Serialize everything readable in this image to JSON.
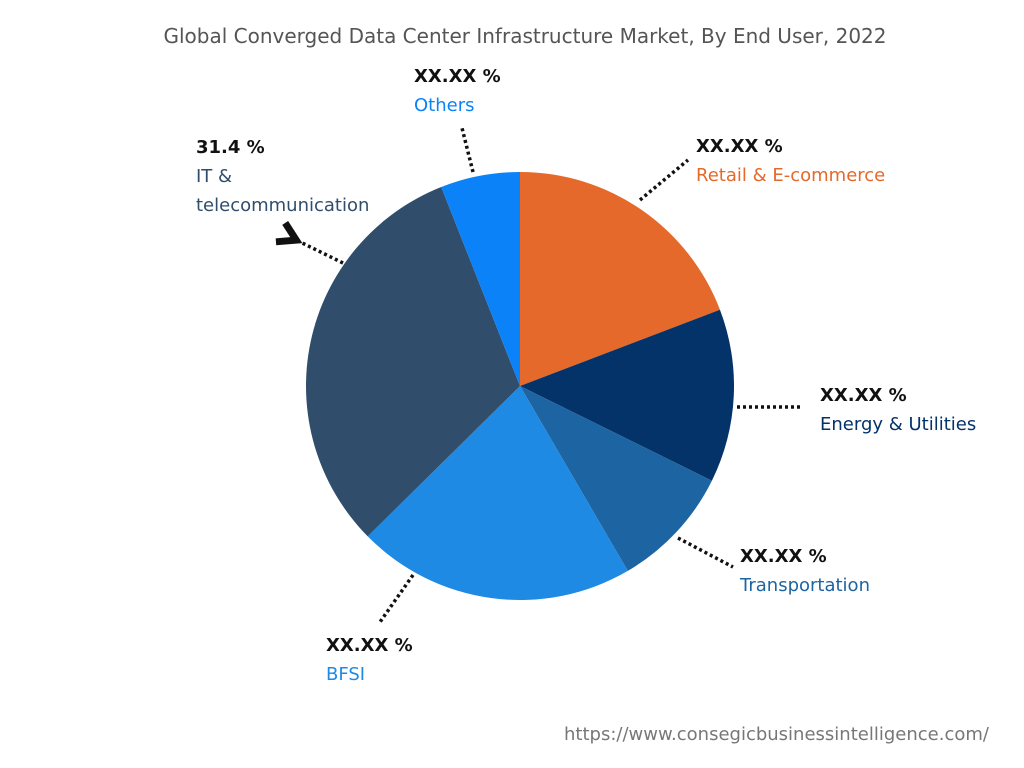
{
  "chart_data": {
    "type": "pie",
    "title": "Global Converged Data Center Infrastructure Market, By End User, 2022",
    "slices": [
      {
        "name": "Retail & E-commerce",
        "value": 19.2,
        "label": "XX.XX %",
        "color": "#E4692A"
      },
      {
        "name": "Energy & Utilities",
        "value": 13.1,
        "label": "XX.XX %",
        "color": "#04336A"
      },
      {
        "name": "Transportation",
        "value": 9.3,
        "label": "XX.XX %",
        "color": "#1D64A2"
      },
      {
        "name": "BFSI",
        "value": 21.0,
        "label": "XX.XX %",
        "color": "#1E8AE4"
      },
      {
        "name": "IT & telecommunication",
        "value": 31.4,
        "label": "31.4 %",
        "color": "#304E6B"
      },
      {
        "name": "Others",
        "value": 6.0,
        "label": "XX.XX %",
        "color": "#0B82F8"
      }
    ],
    "start_angle": "12 o'clock",
    "direction": "clockwise"
  },
  "source_url": "https://www.consegicbusinessintelligence.com/"
}
